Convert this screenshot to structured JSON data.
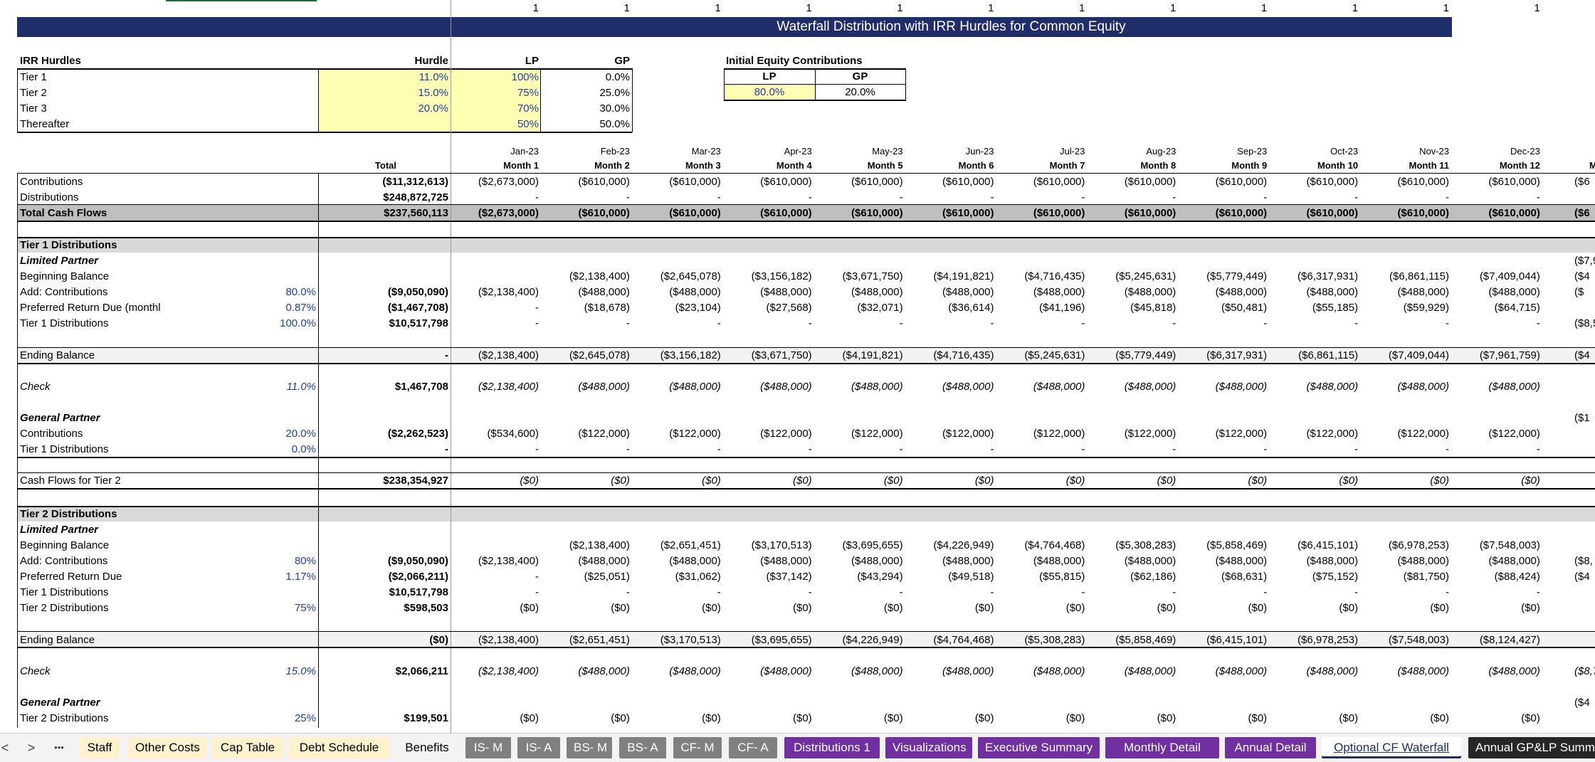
{
  "sheet": {
    "flags": [
      "1",
      "1",
      "1",
      "1",
      "1",
      "1",
      "1",
      "1",
      "1",
      "1",
      "1",
      "1"
    ],
    "title": "Waterfall Distribution with IRR Hurdles for Common Equity",
    "hurdles": {
      "header": "IRR Hurdles",
      "col_hurdle": "Hurdle",
      "col_lp": "LP",
      "col_gp": "GP",
      "rows": [
        {
          "label": "Tier 1",
          "hurdle": "11.0%",
          "lp": "100%",
          "gp": "0.0%"
        },
        {
          "label": "Tier 2",
          "hurdle": "15.0%",
          "lp": "75%",
          "gp": "25.0%"
        },
        {
          "label": "Tier 3",
          "hurdle": "20.0%",
          "lp": "70%",
          "gp": "30.0%"
        },
        {
          "label": "Thereafter",
          "hurdle": "",
          "lp": "50%",
          "gp": "50.0%"
        }
      ]
    },
    "initial_equity": {
      "header": "Initial Equity Contributions",
      "lp_label": "LP",
      "gp_label": "GP",
      "lp": "80.0%",
      "gp": "20.0%"
    },
    "dates": [
      "Jan-23",
      "Feb-23",
      "Mar-23",
      "Apr-23",
      "May-23",
      "Jun-23",
      "Jul-23",
      "Aug-23",
      "Sep-23",
      "Oct-23",
      "Nov-23",
      "Dec-23"
    ],
    "months": [
      "Month 1",
      "Month 2",
      "Month 3",
      "Month 4",
      "Month 5",
      "Month 6",
      "Month 7",
      "Month 8",
      "Month 9",
      "Month 10",
      "Month 11",
      "Month 12"
    ],
    "total_label": "Total",
    "overflow_col": {
      "month": "M",
      "values": [
        "($6",
        "",
        "($6",
        "",
        "($7,9",
        "($4",
        "($",
        "",
        "($8,5",
        "($4",
        "",
        "($1",
        "",
        "",
        "",
        "",
        "",
        "",
        "($8,",
        "($4",
        "",
        "",
        "",
        "($8,7",
        "($4",
        "",
        ""
      ]
    },
    "rows": [
      {
        "label": "Contributions",
        "total": "($11,312,613)",
        "values": [
          "($2,673,000)",
          "($610,000)",
          "($610,000)",
          "($610,000)",
          "($610,000)",
          "($610,000)",
          "($610,000)",
          "($610,000)",
          "($610,000)",
          "($610,000)",
          "($610,000)",
          "($610,000)"
        ]
      },
      {
        "label": "Distributions",
        "total": "$248,872,725",
        "values": [
          "-",
          "-",
          "-",
          "-",
          "-",
          "-",
          "-",
          "-",
          "-",
          "-",
          "-",
          "-"
        ]
      },
      {
        "label": "Total Cash Flows",
        "total": "$237,560,113",
        "values": [
          "($2,673,000)",
          "($610,000)",
          "($610,000)",
          "($610,000)",
          "($610,000)",
          "($610,000)",
          "($610,000)",
          "($610,000)",
          "($610,000)",
          "($610,000)",
          "($610,000)",
          "($610,000)"
        ]
      },
      {
        "label": "Tier 1 Distributions"
      },
      {
        "label": "Limited Partner"
      },
      {
        "label": "Beginning Balance",
        "values": [
          "",
          "($2,138,400)",
          "($2,645,078)",
          "($3,156,182)",
          "($3,671,750)",
          "($4,191,821)",
          "($4,716,435)",
          "($5,245,631)",
          "($5,779,449)",
          "($6,317,931)",
          "($6,861,115)",
          "($7,409,044)"
        ]
      },
      {
        "label": "Add: Contributions",
        "pct": "80.0%",
        "total": "($9,050,090)",
        "values": [
          "($2,138,400)",
          "($488,000)",
          "($488,000)",
          "($488,000)",
          "($488,000)",
          "($488,000)",
          "($488,000)",
          "($488,000)",
          "($488,000)",
          "($488,000)",
          "($488,000)",
          "($488,000)"
        ]
      },
      {
        "label": "Preferred Return Due (monthl",
        "pct": "0.87%",
        "total": "($1,467,708)",
        "values": [
          "-",
          "($18,678)",
          "($23,104)",
          "($27,568)",
          "($32,071)",
          "($36,614)",
          "($41,196)",
          "($45,818)",
          "($50,481)",
          "($55,185)",
          "($59,929)",
          "($64,715)"
        ]
      },
      {
        "label": "Tier 1 Distributions",
        "pct": "100.0%",
        "total": "$10,517,798",
        "values": [
          "-",
          "-",
          "-",
          "-",
          "-",
          "-",
          "-",
          "-",
          "-",
          "-",
          "-",
          "-"
        ]
      },
      {
        "label": "Ending Balance",
        "total": "-",
        "values": [
          "($2,138,400)",
          "($2,645,078)",
          "($3,156,182)",
          "($3,671,750)",
          "($4,191,821)",
          "($4,716,435)",
          "($5,245,631)",
          "($5,779,449)",
          "($6,317,931)",
          "($6,861,115)",
          "($7,409,044)",
          "($7,961,759)"
        ]
      },
      {
        "label": "Check",
        "pct": "11.0%",
        "total": "$1,467,708",
        "values": [
          "($2,138,400)",
          "($488,000)",
          "($488,000)",
          "($488,000)",
          "($488,000)",
          "($488,000)",
          "($488,000)",
          "($488,000)",
          "($488,000)",
          "($488,000)",
          "($488,000)",
          "($488,000)"
        ]
      },
      {
        "label": "General Partner"
      },
      {
        "label": "Contributions",
        "pct": "20.0%",
        "total": "($2,262,523)",
        "values": [
          "($534,600)",
          "($122,000)",
          "($122,000)",
          "($122,000)",
          "($122,000)",
          "($122,000)",
          "($122,000)",
          "($122,000)",
          "($122,000)",
          "($122,000)",
          "($122,000)",
          "($122,000)"
        ]
      },
      {
        "label": "Tier 1 Distributions",
        "pct": "0.0%",
        "total": "-",
        "values": [
          "-",
          "-",
          "-",
          "-",
          "-",
          "-",
          "-",
          "-",
          "-",
          "-",
          "-",
          "-"
        ]
      },
      {
        "label": "Cash Flows for Tier 2",
        "total": "$238,354,927",
        "values": [
          "($0)",
          "($0)",
          "($0)",
          "($0)",
          "($0)",
          "($0)",
          "($0)",
          "($0)",
          "($0)",
          "($0)",
          "($0)",
          "($0)"
        ]
      },
      {
        "label": "Tier 2 Distributions"
      },
      {
        "label": "Limited Partner"
      },
      {
        "label": "Beginning Balance",
        "values": [
          "",
          "($2,138,400)",
          "($2,651,451)",
          "($3,170,513)",
          "($3,695,655)",
          "($4,226,949)",
          "($4,764,468)",
          "($5,308,283)",
          "($5,858,469)",
          "($6,415,101)",
          "($6,978,253)",
          "($7,548,003)"
        ]
      },
      {
        "label": "Add: Contributions",
        "pct": "80%",
        "total": "($9,050,090)",
        "values": [
          "($2,138,400)",
          "($488,000)",
          "($488,000)",
          "($488,000)",
          "($488,000)",
          "($488,000)",
          "($488,000)",
          "($488,000)",
          "($488,000)",
          "($488,000)",
          "($488,000)",
          "($488,000)"
        ]
      },
      {
        "label": "Preferred Return Due",
        "pct": "1.17%",
        "total": "($2,066,211)",
        "values": [
          "-",
          "($25,051)",
          "($31,062)",
          "($37,142)",
          "($43,294)",
          "($49,518)",
          "($55,815)",
          "($62,186)",
          "($68,631)",
          "($75,152)",
          "($81,750)",
          "($88,424)"
        ]
      },
      {
        "label": "Tier 1 Distributions",
        "total": "$10,517,798",
        "values": [
          "-",
          "-",
          "-",
          "-",
          "-",
          "-",
          "-",
          "-",
          "-",
          "-",
          "-",
          "-"
        ]
      },
      {
        "label": "Tier 2 Distributions",
        "pct": "75%",
        "total": "$598,503",
        "values": [
          "($0)",
          "($0)",
          "($0)",
          "($0)",
          "($0)",
          "($0)",
          "($0)",
          "($0)",
          "($0)",
          "($0)",
          "($0)",
          "($0)"
        ]
      },
      {
        "label": "Ending Balance",
        "total": "($0)",
        "values": [
          "($2,138,400)",
          "($2,651,451)",
          "($3,170,513)",
          "($3,695,655)",
          "($4,226,949)",
          "($4,764,468)",
          "($5,308,283)",
          "($5,858,469)",
          "($6,415,101)",
          "($6,978,253)",
          "($7,548,003)",
          "($8,124,427)"
        ]
      },
      {
        "label": "Check",
        "pct": "15.0%",
        "total": "$2,066,211",
        "values": [
          "($2,138,400)",
          "($488,000)",
          "($488,000)",
          "($488,000)",
          "($488,000)",
          "($488,000)",
          "($488,000)",
          "($488,000)",
          "($488,000)",
          "($488,000)",
          "($488,000)",
          "($488,000)"
        ]
      },
      {
        "label": "General Partner"
      },
      {
        "label": "Tier 2 Distributions",
        "pct": "25%",
        "total": "$199,501",
        "values": [
          "($0)",
          "($0)",
          "($0)",
          "($0)",
          "($0)",
          "($0)",
          "($0)",
          "($0)",
          "($0)",
          "($0)",
          "($0)",
          "($0)"
        ]
      }
    ]
  },
  "tabs": {
    "nav": {
      "prev": "<",
      "next": ">",
      "more": "•••"
    },
    "items": [
      {
        "label": "Staff",
        "style": "yellow"
      },
      {
        "label": "Other Costs",
        "style": "yellow"
      },
      {
        "label": "Cap Table",
        "style": "yellow"
      },
      {
        "label": "Debt Schedule",
        "style": "yellow"
      },
      {
        "label": "Benefits",
        "style": "plain"
      },
      {
        "label": "IS- M",
        "style": "gray"
      },
      {
        "label": "IS- A",
        "style": "gray"
      },
      {
        "label": "BS- M",
        "style": "gray"
      },
      {
        "label": "BS- A",
        "style": "gray"
      },
      {
        "label": "CF- M",
        "style": "gray"
      },
      {
        "label": "CF- A",
        "style": "gray"
      },
      {
        "label": "Distributions 1",
        "style": "purple"
      },
      {
        "label": "Visualizations",
        "style": "purple"
      },
      {
        "label": "Executive Summary",
        "style": "purple"
      },
      {
        "label": "Monthly Detail",
        "style": "purple"
      },
      {
        "label": "Annual Detail",
        "style": "purple"
      },
      {
        "label": "Optional CF Waterfall",
        "style": "active"
      },
      {
        "label": "Annual GP&LP Summ",
        "style": "dark"
      }
    ],
    "colors": {
      "yellow": "#fff2cc",
      "gray": "#808080",
      "purple": "#7030a0",
      "dark": "#262626",
      "title_bar": "#1f2d6b",
      "input_fill": "#ffffb3",
      "header_fill": "#bfbfbf",
      "section_fill": "#d9d9d9"
    }
  }
}
